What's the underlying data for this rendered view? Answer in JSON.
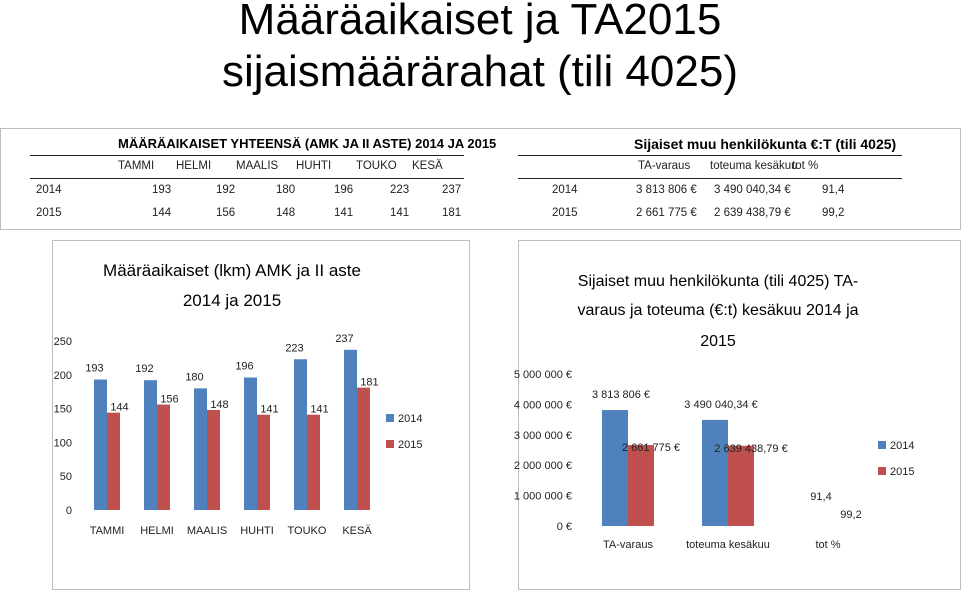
{
  "slide": {
    "title_line1": "Määräaikaiset ja TA2015",
    "title_line2": "sijaismäärärahat (tili 4025)"
  },
  "left_table": {
    "header": "MÄÄRÄAIKAISET YHTEENSÄ (AMK JA II ASTE) 2014 JA 2015",
    "columns": [
      "TAMMI",
      "HELMI",
      "MAALIS",
      "HUHTI",
      "TOUKO",
      "KESÄ"
    ],
    "rows": [
      {
        "year": "2014",
        "values": [
          "193",
          "192",
          "180",
          "196",
          "223",
          "237"
        ]
      },
      {
        "year": "2015",
        "values": [
          "144",
          "156",
          "148",
          "141",
          "141",
          "181"
        ]
      }
    ]
  },
  "right_table": {
    "header": "Sijaiset muu henkilökunta €:T (tili 4025)",
    "columns": [
      "TA-varaus",
      "toteuma kesäkuu",
      "tot %"
    ],
    "rows": [
      {
        "year": "2014",
        "values": [
          "3 813 806 €",
          "3 490 040,34 €",
          "91,4"
        ]
      },
      {
        "year": "2015",
        "values": [
          "2 661 775 €",
          "2 639 438,79 €",
          "99,2"
        ]
      }
    ]
  },
  "colors": {
    "series_2014": "#4f81bd",
    "series_2015": "#c0504d"
  },
  "chart_data": [
    {
      "type": "bar",
      "title_line1": "Määräaikaiset (lkm) AMK ja II aste",
      "title_line2": "2014 ja 2015",
      "categories": [
        "TAMMI",
        "HELMI",
        "MAALIS",
        "HUHTI",
        "TOUKO",
        "KESÄ"
      ],
      "series": [
        {
          "name": "2014",
          "values": [
            193,
            192,
            180,
            196,
            223,
            237
          ]
        },
        {
          "name": "2015",
          "values": [
            144,
            156,
            148,
            141,
            141,
            181
          ]
        }
      ],
      "yticks": [
        "0",
        "50",
        "100",
        "150",
        "200",
        "250"
      ],
      "ylim": [
        0,
        250
      ],
      "grid": false,
      "legend": "right"
    },
    {
      "type": "bar",
      "title_line1": "Sijaiset muu henkilökunta (tili 4025) TA-",
      "title_line2": "varaus ja toteuma (€:t) kesäkuu 2014 ja",
      "title_line3": "2015",
      "categories": [
        "TA-varaus",
        "toteuma kesäkuu",
        "tot %"
      ],
      "series": [
        {
          "name": "2014",
          "values": [
            3813806,
            3490040.34,
            91.4
          ],
          "labels": [
            "3 813 806 €",
            "3 490 040,34 €",
            "91,4"
          ]
        },
        {
          "name": "2015",
          "values": [
            2661775,
            2639438.79,
            99.2
          ],
          "labels": [
            "2 661 775 €",
            "2 639 438,79 €",
            "99,2"
          ]
        }
      ],
      "yticks": [
        "0 €",
        "1 000 000 €",
        "2 000 000 €",
        "3 000 000 €",
        "4 000 000 €",
        "5 000 000 €"
      ],
      "ylim": [
        0,
        5000000
      ],
      "grid": false,
      "legend": "right"
    }
  ]
}
